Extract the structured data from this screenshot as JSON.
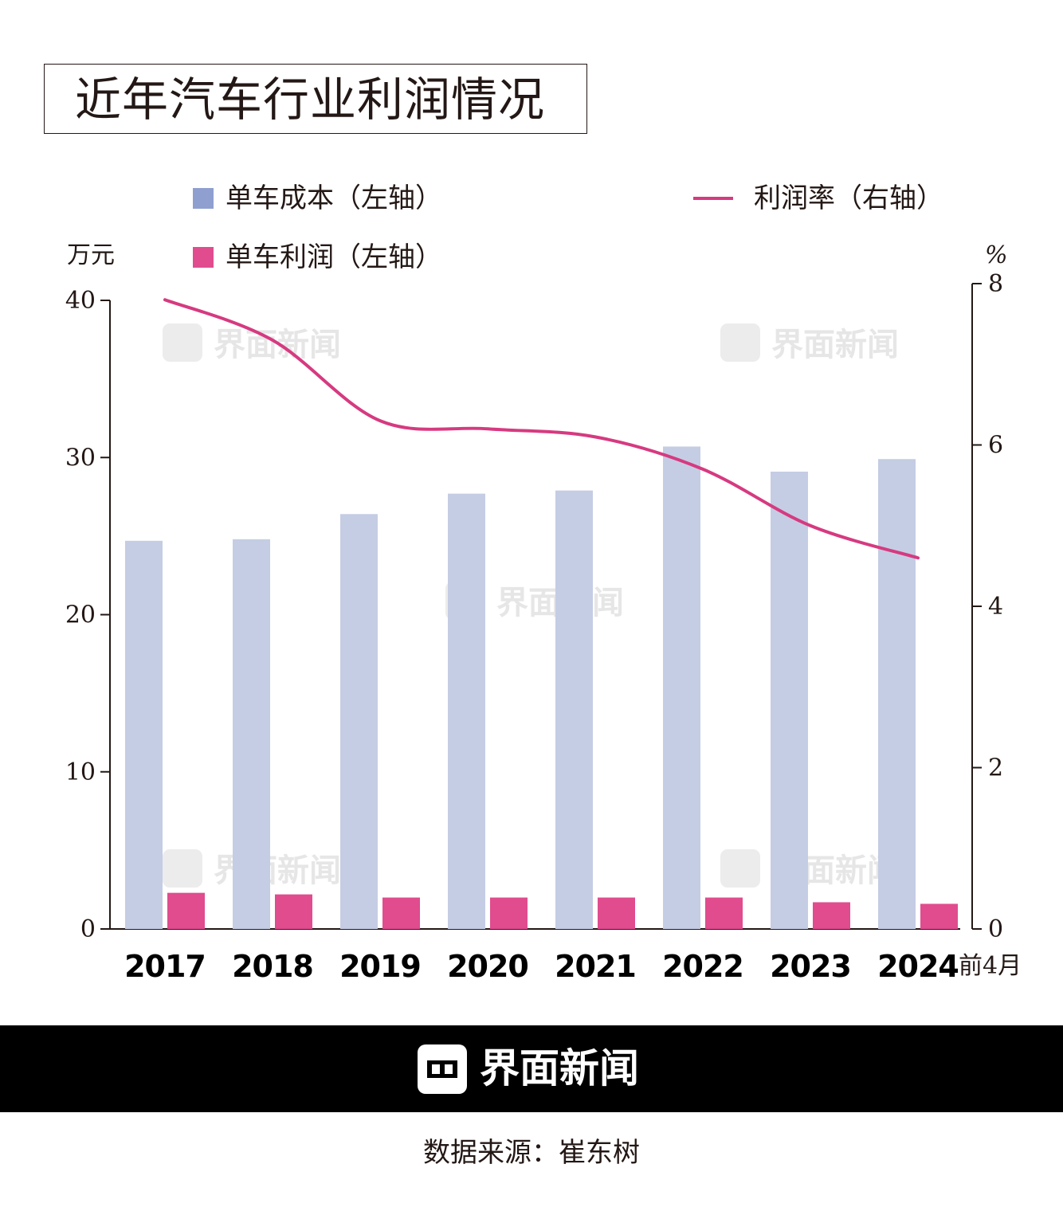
{
  "title": "近年汽车行业利润情况",
  "legend": {
    "cost": "单车成本（左轴）",
    "profit": "单车利润（左轴）",
    "rate": "利润率（右轴）"
  },
  "colors": {
    "cost_legend": "#8f9fcf",
    "cost_bar": "#c5cde4",
    "profit": "#e04c8e",
    "rate": "#d63a80",
    "axis": "#231815",
    "watermark": "#b0b0b0"
  },
  "watermark_text": "界面新闻",
  "footer": {
    "brand": "界面新闻"
  },
  "source": "数据来源：崔东树",
  "chart_data": {
    "type": "bar",
    "categories": [
      "2017",
      "2018",
      "2019",
      "2020",
      "2021",
      "2022",
      "2023",
      "2024"
    ],
    "x_suffix": "前4月",
    "series": [
      {
        "name": "单车成本（左轴）",
        "axis": "left",
        "type": "bar",
        "values": [
          24.7,
          24.8,
          26.4,
          27.7,
          27.9,
          30.7,
          29.1,
          29.9
        ]
      },
      {
        "name": "单车利润（左轴）",
        "axis": "left",
        "type": "bar",
        "values": [
          2.3,
          2.2,
          2.0,
          2.0,
          2.0,
          2.0,
          1.7,
          1.6
        ]
      },
      {
        "name": "利润率（右轴）",
        "axis": "right",
        "type": "line",
        "values": [
          7.8,
          7.3,
          6.3,
          6.2,
          6.1,
          5.7,
          5.0,
          4.6
        ]
      }
    ],
    "left_axis": {
      "label": "万元",
      "ticks": [
        "0",
        "10",
        "20",
        "30",
        "40"
      ],
      "ylim": [
        0,
        40
      ]
    },
    "right_axis": {
      "label": "%",
      "ticks": [
        "0",
        "2",
        "4",
        "6",
        "8"
      ],
      "ylim": [
        0,
        8
      ]
    }
  }
}
